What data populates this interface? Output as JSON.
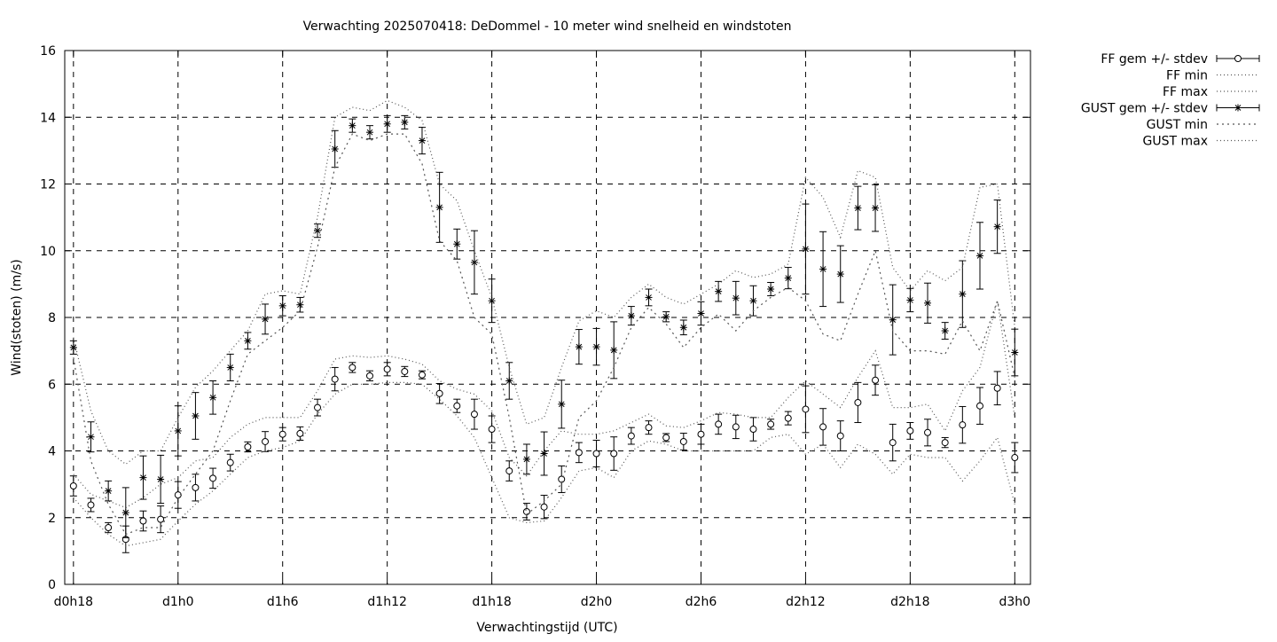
{
  "chart_data": {
    "type": "line",
    "title": "Verwachting 2025070418: DeDommel - 10 meter wind snelheid en windstoten",
    "xlabel": "Verwachtingstijd (UTC)",
    "ylabel": "Wind(stoten) (m/s)",
    "ylim": [
      0,
      16
    ],
    "yticks": [
      0,
      2,
      4,
      6,
      8,
      10,
      12,
      14,
      16
    ],
    "xlim": [
      17.5,
      72.9
    ],
    "xticks": [
      {
        "x": 18,
        "label": "d0h18"
      },
      {
        "x": 24,
        "label": "d1h0"
      },
      {
        "x": 30,
        "label": "d1h6"
      },
      {
        "x": 36,
        "label": "d1h12"
      },
      {
        "x": 42,
        "label": "d1h18"
      },
      {
        "x": 48,
        "label": "d2h0"
      },
      {
        "x": 54,
        "label": "d2h6"
      },
      {
        "x": 60,
        "label": "d2h12"
      },
      {
        "x": 66,
        "label": "d2h18"
      },
      {
        "x": 72,
        "label": "d3h0"
      }
    ],
    "grid": true,
    "legend_position": "outside-top-right",
    "x": [
      18,
      19,
      20,
      21,
      22,
      23,
      24,
      25,
      26,
      27,
      28,
      29,
      30,
      31,
      32,
      33,
      34,
      35,
      36,
      37,
      38,
      39,
      40,
      41,
      42,
      43,
      44,
      45,
      46,
      47,
      48,
      49,
      50,
      51,
      52,
      53,
      54,
      55,
      56,
      57,
      58,
      59,
      60,
      61,
      62,
      63,
      64,
      65,
      66,
      67,
      68,
      69,
      70,
      71,
      72
    ],
    "series": [
      {
        "name": "FF gem +/- stdev",
        "style": "errorbar-circle",
        "values": [
          2.95,
          2.38,
          1.7,
          1.35,
          1.9,
          1.95,
          2.68,
          2.9,
          3.18,
          3.65,
          4.12,
          4.28,
          4.5,
          4.52,
          5.3,
          6.15,
          6.5,
          6.25,
          6.45,
          6.38,
          6.28,
          5.72,
          5.35,
          5.1,
          4.65,
          3.4,
          2.18,
          2.32,
          3.15,
          3.95,
          3.92,
          3.92,
          4.45,
          4.7,
          4.4,
          4.28,
          4.5,
          4.8,
          4.72,
          4.65,
          4.8,
          4.98,
          5.25,
          4.72,
          4.45,
          5.45,
          6.12,
          4.25,
          4.6,
          4.55,
          4.25,
          4.78,
          5.35,
          5.88,
          3.8
        ],
        "stdev": [
          0.3,
          0.2,
          0.15,
          0.4,
          0.3,
          0.4,
          0.4,
          0.4,
          0.3,
          0.25,
          0.15,
          0.3,
          0.2,
          0.2,
          0.25,
          0.35,
          0.15,
          0.15,
          0.2,
          0.15,
          0.12,
          0.3,
          0.2,
          0.45,
          0.4,
          0.3,
          0.25,
          0.35,
          0.4,
          0.3,
          0.4,
          0.5,
          0.25,
          0.2,
          0.12,
          0.25,
          0.3,
          0.3,
          0.35,
          0.35,
          0.15,
          0.2,
          0.7,
          0.55,
          0.45,
          0.6,
          0.45,
          0.55,
          0.25,
          0.4,
          0.15,
          0.55,
          0.55,
          0.5,
          0.45
        ]
      },
      {
        "name": "FF min",
        "style": "dotted",
        "values": [
          2.6,
          2.0,
          1.5,
          1.15,
          1.25,
          1.35,
          1.9,
          2.4,
          2.8,
          3.3,
          3.8,
          4.0,
          4.1,
          4.3,
          5.1,
          5.7,
          6.0,
          6.0,
          6.05,
          6.05,
          6.0,
          5.55,
          5.05,
          4.4,
          3.2,
          2.0,
          1.85,
          1.9,
          2.6,
          3.4,
          3.5,
          3.2,
          4.0,
          4.3,
          4.2,
          4.0,
          4.0,
          4.0,
          4.0,
          4.0,
          4.4,
          4.5,
          3.9,
          4.2,
          3.5,
          4.2,
          3.9,
          3.3,
          3.9,
          3.8,
          3.8,
          3.1,
          3.7,
          4.4,
          2.4
        ]
      },
      {
        "name": "FF max",
        "style": "dotted",
        "values": [
          3.3,
          2.7,
          2.5,
          2.3,
          2.6,
          3.0,
          3.2,
          3.7,
          3.8,
          4.4,
          4.8,
          5.0,
          5.0,
          5.0,
          5.8,
          6.75,
          6.85,
          6.8,
          6.85,
          6.75,
          6.6,
          6.1,
          5.85,
          5.7,
          5.2,
          3.8,
          3.25,
          4.0,
          4.6,
          4.5,
          4.5,
          4.6,
          4.85,
          5.1,
          4.75,
          4.7,
          4.9,
          5.15,
          5.1,
          5.0,
          5.0,
          5.6,
          6.1,
          5.7,
          5.3,
          6.2,
          7.0,
          5.3,
          5.3,
          5.4,
          4.6,
          5.8,
          6.5,
          8.5,
          5.0
        ]
      },
      {
        "name": "GUST gem +/- stdev",
        "style": "errorbar-star",
        "values": [
          7.1,
          4.42,
          2.8,
          2.15,
          3.2,
          3.15,
          4.6,
          5.05,
          5.6,
          6.5,
          7.3,
          7.95,
          8.35,
          8.38,
          10.6,
          13.05,
          13.75,
          13.55,
          13.8,
          13.85,
          13.3,
          11.3,
          10.2,
          9.65,
          8.5,
          6.1,
          3.75,
          3.92,
          5.4,
          7.12,
          7.12,
          7.02,
          8.05,
          8.6,
          8.02,
          7.7,
          8.12,
          8.78,
          8.58,
          8.5,
          8.85,
          9.18,
          10.05,
          9.45,
          9.3,
          11.28,
          11.28,
          7.93,
          8.52,
          8.43,
          7.6,
          8.7,
          9.85,
          10.72,
          6.95
        ],
        "stdev": [
          0.2,
          0.45,
          0.3,
          0.75,
          0.65,
          0.72,
          0.75,
          0.7,
          0.5,
          0.4,
          0.25,
          0.45,
          0.3,
          0.22,
          0.2,
          0.55,
          0.2,
          0.2,
          0.25,
          0.2,
          0.4,
          1.05,
          0.45,
          0.95,
          0.65,
          0.55,
          0.45,
          0.65,
          0.72,
          0.52,
          0.55,
          0.85,
          0.28,
          0.25,
          0.15,
          0.22,
          0.35,
          0.3,
          0.5,
          0.45,
          0.2,
          0.32,
          1.35,
          1.12,
          0.85,
          0.65,
          0.7,
          1.05,
          0.35,
          0.6,
          0.25,
          1.0,
          1.0,
          0.8,
          0.7
        ]
      },
      {
        "name": "GUST min",
        "style": "dotted",
        "values": [
          6.8,
          3.7,
          2.4,
          1.5,
          1.7,
          1.7,
          2.6,
          3.3,
          4.0,
          5.5,
          6.9,
          7.3,
          7.7,
          8.2,
          10.1,
          12.5,
          13.5,
          13.3,
          13.5,
          13.5,
          12.6,
          10.3,
          9.7,
          8.0,
          7.5,
          5.0,
          2.1,
          2.5,
          3.0,
          5.0,
          5.5,
          6.5,
          7.7,
          8.3,
          7.8,
          7.1,
          7.7,
          8.1,
          7.6,
          8.2,
          8.6,
          8.9,
          8.5,
          7.5,
          7.3,
          8.7,
          10.0,
          7.6,
          7.0,
          7.0,
          6.9,
          7.9,
          7.0,
          8.5,
          6.2
        ]
      },
      {
        "name": "GUST max",
        "style": "dotted",
        "values": [
          7.4,
          5.2,
          4.0,
          3.6,
          4.0,
          4.0,
          5.0,
          5.9,
          6.4,
          7.0,
          7.6,
          8.7,
          8.8,
          8.7,
          11.0,
          14.0,
          14.3,
          14.2,
          14.5,
          14.3,
          13.9,
          12.0,
          11.5,
          10.0,
          8.6,
          6.5,
          4.8,
          5.0,
          6.5,
          7.9,
          8.2,
          8.0,
          8.6,
          9.0,
          8.6,
          8.4,
          8.7,
          9.0,
          9.4,
          9.2,
          9.3,
          9.6,
          12.2,
          11.6,
          10.4,
          12.4,
          12.2,
          9.5,
          8.8,
          9.4,
          9.1,
          9.5,
          11.9,
          12.0,
          7.7
        ]
      }
    ]
  }
}
